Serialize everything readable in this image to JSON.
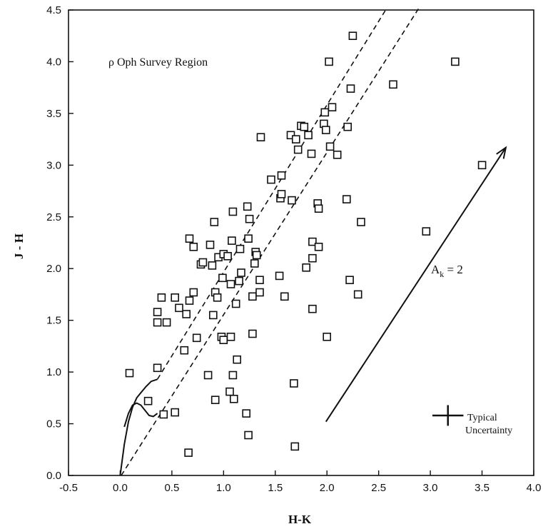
{
  "chart_data": {
    "type": "scatter",
    "title": "",
    "xlabel": "H-K",
    "ylabel": "J - H",
    "xlim": [
      -0.5,
      4.0
    ],
    "ylim": [
      0.0,
      4.5
    ],
    "x_ticks": [
      "-0.5",
      "0.0",
      "0.5",
      "1.0",
      "1.5",
      "2.0",
      "2.5",
      "3.0",
      "3.5",
      "4.0"
    ],
    "y_ticks": [
      "0.0",
      "0.5",
      "1.0",
      "1.5",
      "2.0",
      "2.5",
      "3.0",
      "3.5",
      "4.0",
      "4.5"
    ],
    "grid": false,
    "annotations": {
      "region_label": "ρ Oph Survey Region",
      "extinction_label_main": "A",
      "extinction_label_sub": "k",
      "extinction_label_value": " = 2",
      "uncertainty_line1": "Typical",
      "uncertainty_line2": "Uncertainty"
    },
    "points": [
      [
        0.09,
        0.99
      ],
      [
        0.27,
        0.72
      ],
      [
        0.36,
        1.04
      ],
      [
        0.42,
        0.59
      ],
      [
        0.53,
        0.61
      ],
      [
        0.66,
        0.22
      ],
      [
        0.36,
        1.48
      ],
      [
        0.36,
        1.58
      ],
      [
        0.4,
        1.72
      ],
      [
        0.45,
        1.48
      ],
      [
        0.53,
        1.72
      ],
      [
        0.57,
        1.62
      ],
      [
        0.62,
        1.21
      ],
      [
        0.64,
        1.56
      ],
      [
        0.67,
        1.69
      ],
      [
        0.67,
        2.29
      ],
      [
        0.71,
        2.21
      ],
      [
        0.71,
        1.77
      ],
      [
        0.74,
        1.33
      ],
      [
        0.78,
        2.04
      ],
      [
        0.8,
        2.06
      ],
      [
        0.85,
        0.97
      ],
      [
        0.87,
        2.23
      ],
      [
        0.89,
        2.03
      ],
      [
        0.9,
        1.55
      ],
      [
        0.91,
        2.45
      ],
      [
        0.92,
        1.77
      ],
      [
        0.92,
        0.73
      ],
      [
        0.94,
        1.72
      ],
      [
        0.95,
        2.11
      ],
      [
        0.98,
        1.34
      ],
      [
        0.99,
        1.91
      ],
      [
        1.0,
        1.31
      ],
      [
        1.0,
        2.14
      ],
      [
        1.04,
        2.12
      ],
      [
        1.06,
        0.81
      ],
      [
        1.07,
        1.34
      ],
      [
        1.07,
        1.85
      ],
      [
        1.08,
        2.27
      ],
      [
        1.09,
        2.55
      ],
      [
        1.09,
        0.97
      ],
      [
        1.1,
        0.74
      ],
      [
        1.12,
        1.66
      ],
      [
        1.13,
        1.12
      ],
      [
        1.15,
        1.88
      ],
      [
        1.16,
        2.19
      ],
      [
        1.17,
        1.96
      ],
      [
        1.22,
        0.6
      ],
      [
        1.23,
        2.6
      ],
      [
        1.24,
        0.39
      ],
      [
        1.24,
        2.29
      ],
      [
        1.25,
        2.48
      ],
      [
        1.28,
        1.37
      ],
      [
        1.28,
        1.73
      ],
      [
        1.3,
        2.05
      ],
      [
        1.31,
        2.16
      ],
      [
        1.32,
        2.13
      ],
      [
        1.35,
        1.89
      ],
      [
        1.35,
        1.77
      ],
      [
        1.36,
        3.27
      ],
      [
        1.46,
        2.86
      ],
      [
        1.54,
        1.93
      ],
      [
        1.55,
        2.68
      ],
      [
        1.56,
        2.72
      ],
      [
        1.56,
        2.9
      ],
      [
        1.59,
        1.73
      ],
      [
        1.65,
        3.29
      ],
      [
        1.66,
        2.66
      ],
      [
        1.68,
        0.89
      ],
      [
        1.69,
        0.28
      ],
      [
        1.7,
        3.25
      ],
      [
        1.72,
        3.15
      ],
      [
        1.75,
        3.38
      ],
      [
        1.78,
        3.37
      ],
      [
        1.8,
        2.01
      ],
      [
        1.82,
        3.29
      ],
      [
        1.85,
        3.11
      ],
      [
        1.86,
        2.26
      ],
      [
        1.86,
        1.61
      ],
      [
        1.86,
        2.1
      ],
      [
        1.91,
        2.63
      ],
      [
        1.92,
        2.58
      ],
      [
        1.92,
        2.21
      ],
      [
        1.97,
        3.4
      ],
      [
        1.98,
        3.51
      ],
      [
        1.99,
        3.34
      ],
      [
        2.0,
        1.34
      ],
      [
        2.02,
        4.0
      ],
      [
        2.03,
        3.18
      ],
      [
        2.05,
        3.56
      ],
      [
        2.1,
        3.1
      ],
      [
        2.19,
        2.67
      ],
      [
        2.2,
        3.37
      ],
      [
        2.22,
        1.89
      ],
      [
        2.23,
        3.74
      ],
      [
        2.25,
        4.25
      ],
      [
        2.3,
        1.75
      ],
      [
        2.33,
        2.45
      ],
      [
        2.64,
        3.78
      ],
      [
        2.96,
        2.36
      ],
      [
        3.24,
        4.0
      ],
      [
        3.5,
        3.0
      ]
    ],
    "reddening_lines": [
      {
        "x": [
          0.36,
          2.58
        ],
        "y": [
          0.93,
          4.52
        ]
      },
      {
        "x": [
          0.01,
          2.89
        ],
        "y": [
          0.0,
          4.52
        ]
      }
    ],
    "dwarf_locus": {
      "x": [
        0.04,
        0.08,
        0.12,
        0.16,
        0.2,
        0.24,
        0.28,
        0.32,
        0.36
      ],
      "y": [
        0.47,
        0.6,
        0.68,
        0.7,
        0.68,
        0.63,
        0.58,
        0.57,
        0.6
      ]
    },
    "giant_locus": {
      "x": [
        0.0,
        0.04,
        0.08,
        0.12,
        0.16,
        0.2,
        0.25,
        0.3,
        0.36
      ],
      "y": [
        0.0,
        0.3,
        0.52,
        0.66,
        0.75,
        0.8,
        0.86,
        0.91,
        0.93
      ]
    },
    "extinction_vector": {
      "x": [
        1.99,
        3.73
      ],
      "y": [
        0.52,
        3.17
      ]
    },
    "uncertainty_cross": {
      "x": 3.17,
      "y": 0.58,
      "dx": 0.15,
      "dy": 0.1
    }
  }
}
